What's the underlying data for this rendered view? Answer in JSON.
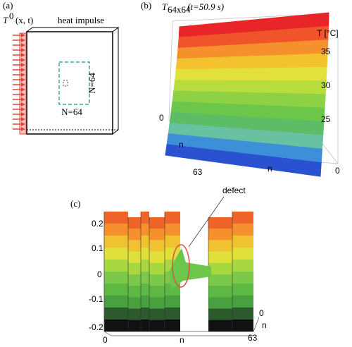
{
  "panel_a": {
    "label": "(a)",
    "boundary_symbol": "T",
    "boundary_power": "0",
    "boundary_args": "(x, t)",
    "heat_label": "heat impulse",
    "size_vertical": "N=64",
    "size_horizontal": "N=64"
  },
  "panel_b": {
    "label": "(b)",
    "title_symbol": "T",
    "title_subscript": "64x64",
    "title_time": "(t=50.9 s)",
    "z_label": "T [°C]",
    "z_ticks": [
      "35",
      "30",
      "25"
    ],
    "left_ticks": [
      "0",
      "63"
    ],
    "left_label": "n",
    "right_ticks": [
      "0"
    ],
    "right_label": "n"
  },
  "panel_c": {
    "label": "(c)",
    "annotation": "defect",
    "z_ticks": [
      "0.2",
      "0.1",
      "0",
      "-0.1",
      "-0.2"
    ],
    "bottom_ticks": [
      "0",
      "63"
    ],
    "bottom_label": "n",
    "right_ticks": [
      "0"
    ],
    "right_label": "n"
  }
}
